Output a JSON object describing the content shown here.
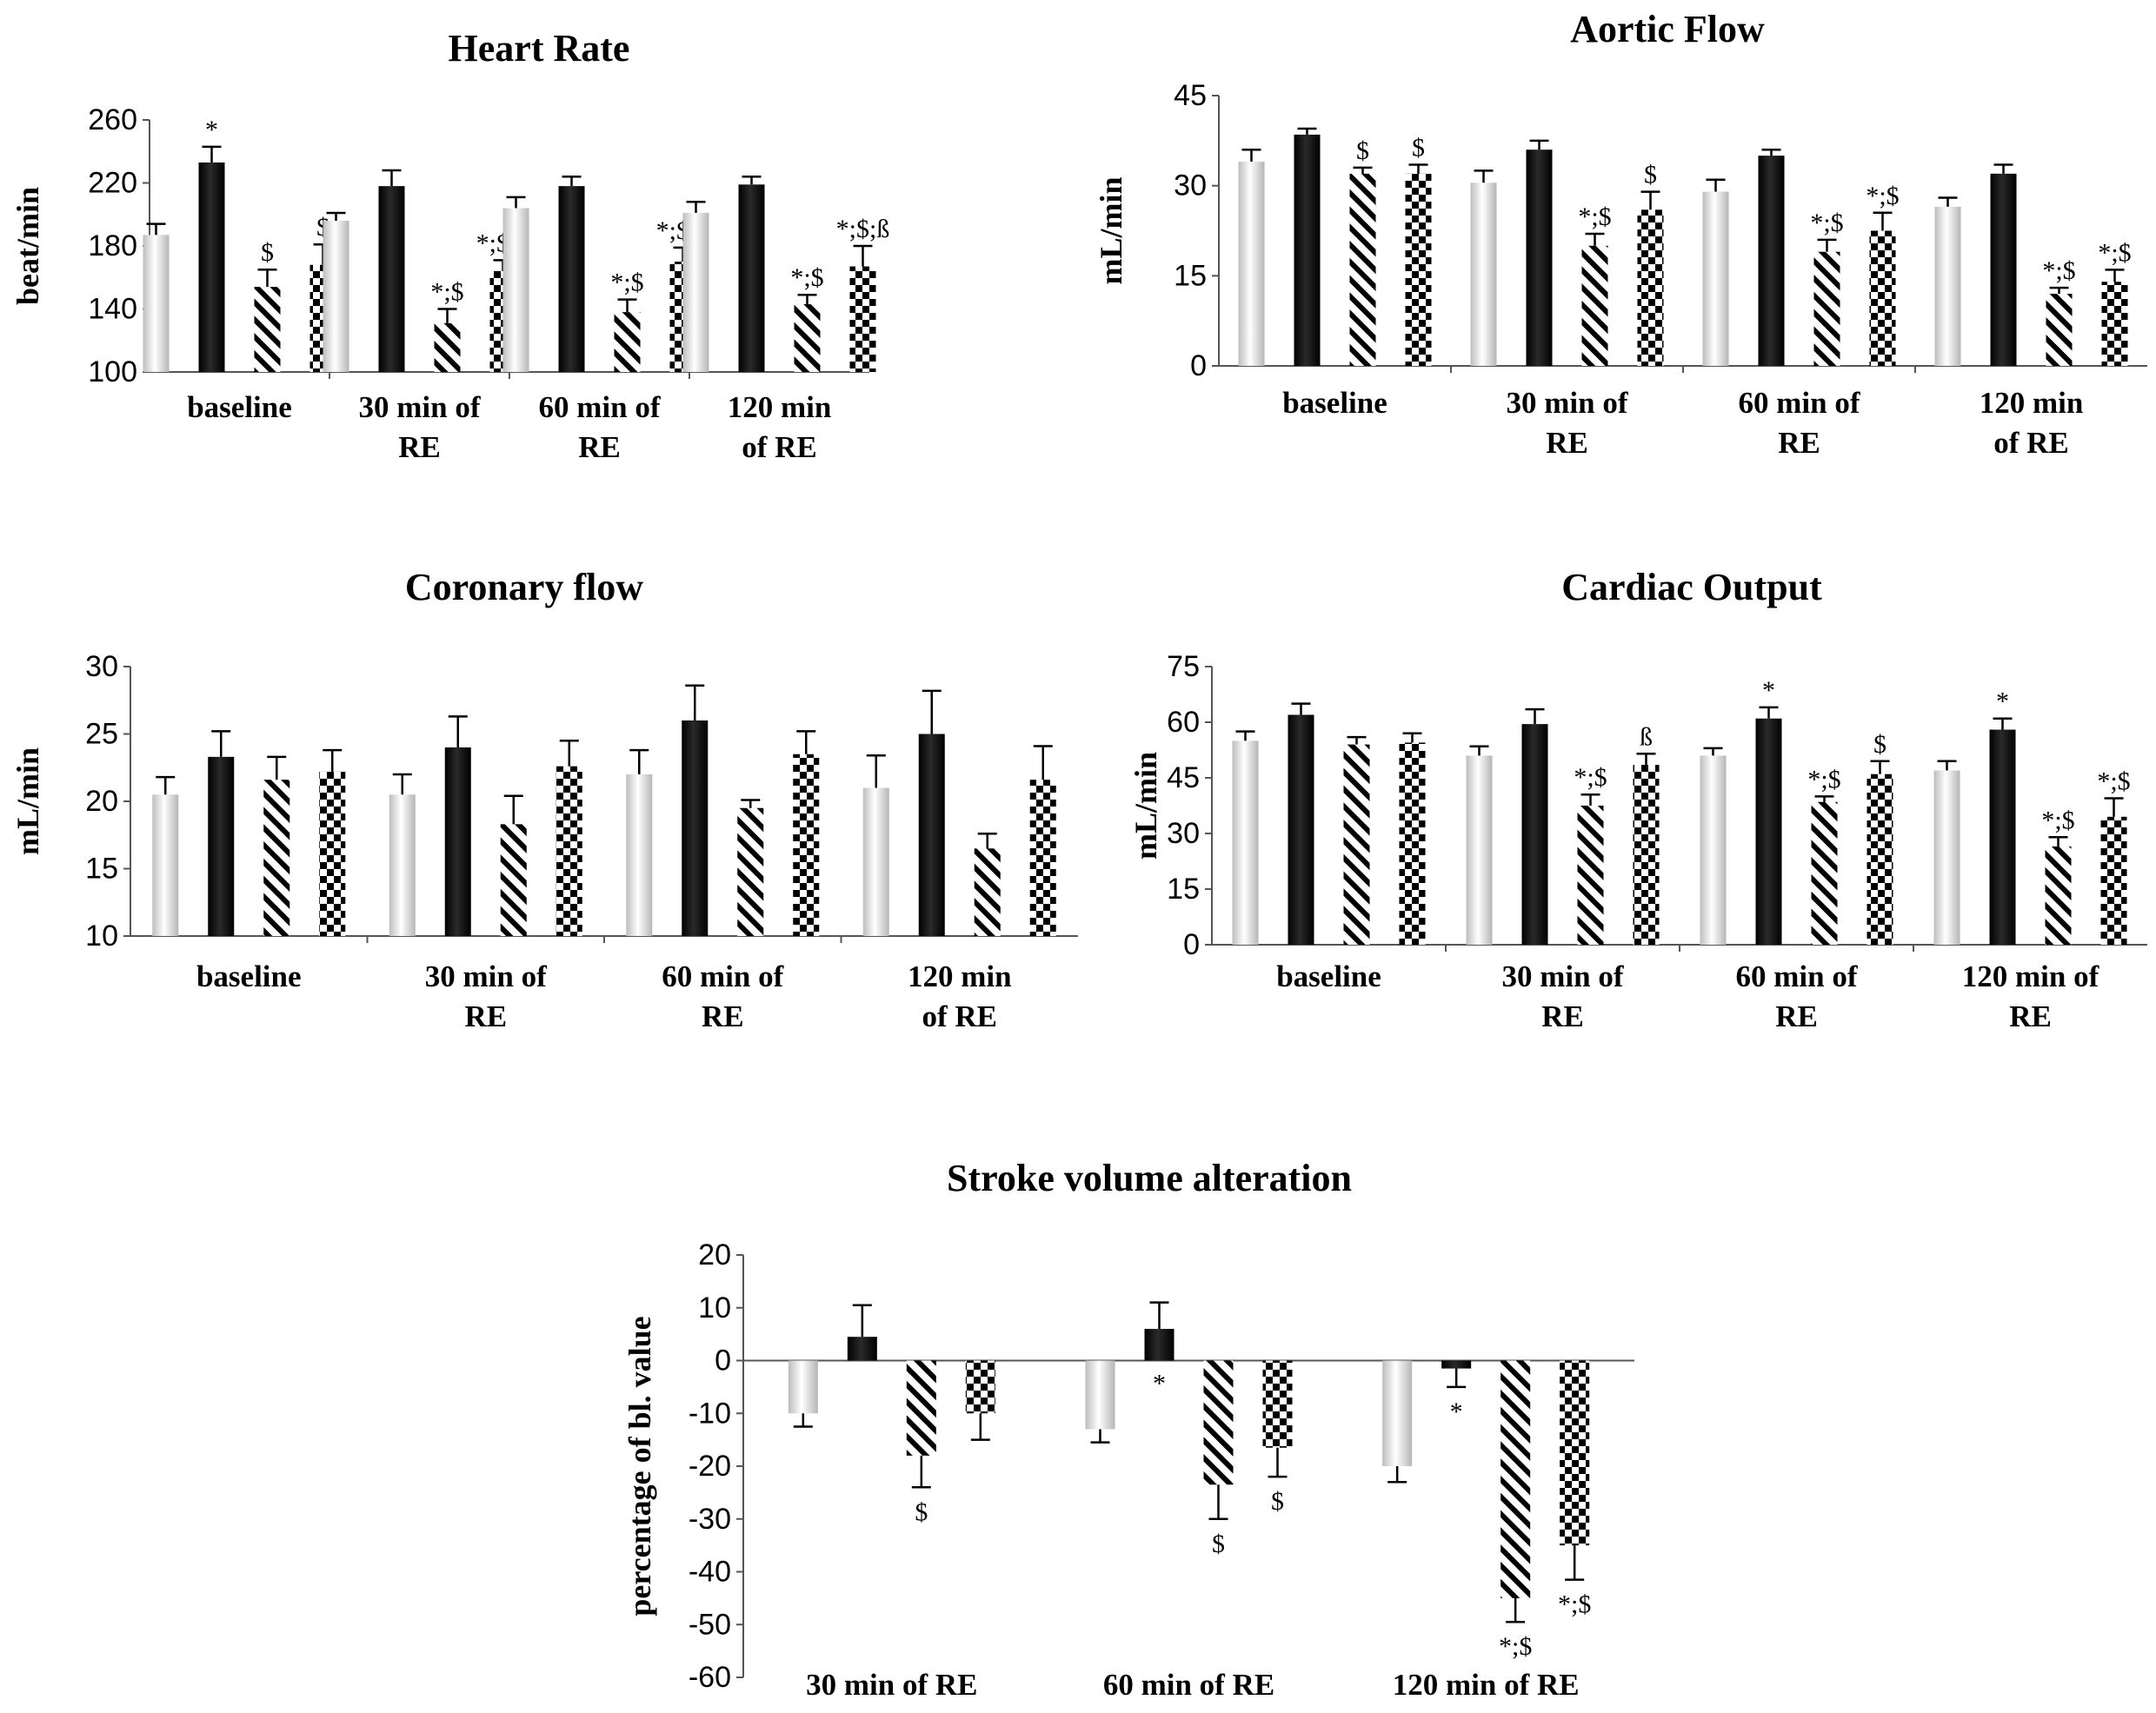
{
  "chart_data": [
    {
      "type": "bar",
      "title": "Heart Rate",
      "ylabel": "beat/min",
      "ylim": [
        100,
        260
      ],
      "yticks": [
        100,
        140,
        180,
        220,
        260
      ],
      "categories": [
        "baseline",
        "30 min of RE",
        "60 min of RE",
        "120 min of RE"
      ],
      "category_lines": [
        [
          "baseline"
        ],
        [
          "30 min of",
          "RE"
        ],
        [
          "60 min of",
          "RE"
        ],
        [
          "120 min",
          "of RE"
        ]
      ],
      "series": [
        {
          "style": "grey",
          "values": [
            187,
            196,
            204,
            201
          ],
          "errors": [
            7,
            5,
            7,
            7
          ],
          "annotations": [
            "",
            "",
            "",
            ""
          ]
        },
        {
          "style": "black",
          "values": [
            233,
            218,
            218,
            219
          ],
          "errors": [
            10,
            10,
            6,
            5
          ],
          "annotations": [
            "*",
            "",
            "",
            ""
          ]
        },
        {
          "style": "hatch",
          "values": [
            154,
            131,
            138,
            143
          ],
          "errors": [
            11,
            9,
            8,
            6
          ],
          "annotations": [
            "$",
            "*;$",
            "*;$",
            "*;$"
          ]
        },
        {
          "style": "checker",
          "values": [
            168,
            164,
            170,
            167
          ],
          "errors": [
            13,
            7,
            9,
            13
          ],
          "annotations": [
            "$",
            "*;$;ß",
            "*;$;ß",
            "*;$;ß"
          ]
        }
      ]
    },
    {
      "type": "bar",
      "title": "Aortic Flow",
      "ylabel": "mL/min",
      "ylim": [
        0,
        45
      ],
      "yticks": [
        0,
        15,
        30,
        45
      ],
      "categories": [
        "baseline",
        "30 min of RE",
        "60 min of RE",
        "120 min of RE"
      ],
      "category_lines": [
        [
          "baseline"
        ],
        [
          "30 min of",
          "RE"
        ],
        [
          "60 min of",
          "RE"
        ],
        [
          "120 min",
          "of RE"
        ]
      ],
      "series": [
        {
          "style": "grey",
          "values": [
            34,
            30.5,
            29,
            26.5
          ],
          "errors": [
            2,
            2,
            2,
            1.5
          ],
          "annotations": [
            "",
            "",
            "",
            ""
          ]
        },
        {
          "style": "black",
          "values": [
            38.5,
            36,
            35,
            32
          ],
          "errors": [
            1,
            1.5,
            1,
            1.5
          ],
          "annotations": [
            "",
            "",
            "",
            ""
          ]
        },
        {
          "style": "hatch",
          "values": [
            32,
            20,
            19,
            12
          ],
          "errors": [
            1,
            2,
            2,
            1
          ],
          "annotations": [
            "$",
            "*;$",
            "*;$",
            "*;$"
          ]
        },
        {
          "style": "checker",
          "values": [
            32,
            26,
            22.5,
            14
          ],
          "errors": [
            1.5,
            3,
            3,
            2
          ],
          "annotations": [
            "$",
            "$",
            "*;$",
            "*;$"
          ]
        }
      ]
    },
    {
      "type": "bar",
      "title": "Coronary  flow",
      "ylabel": "mL/min",
      "ylim": [
        10,
        30
      ],
      "yticks": [
        10,
        15,
        20,
        25,
        30
      ],
      "categories": [
        "baseline",
        "30 min of RE",
        "60 min of RE",
        "120 min of RE"
      ],
      "category_lines": [
        [
          "baseline"
        ],
        [
          "30 min of",
          "RE"
        ],
        [
          "60 min of",
          "RE"
        ],
        [
          "120 min",
          "of RE"
        ]
      ],
      "series": [
        {
          "style": "grey",
          "values": [
            20.5,
            20.5,
            22,
            21
          ],
          "errors": [
            1.3,
            1.5,
            1.8,
            2.4
          ],
          "annotations": [
            "",
            "",
            "",
            ""
          ]
        },
        {
          "style": "black",
          "values": [
            23.3,
            24,
            26,
            25
          ],
          "errors": [
            1.9,
            2.3,
            2.6,
            3.2
          ],
          "annotations": [
            "",
            "",
            "",
            ""
          ]
        },
        {
          "style": "hatch",
          "values": [
            21.6,
            18.3,
            19.5,
            16.5
          ],
          "errors": [
            1.7,
            2.1,
            0.6,
            1.1
          ],
          "annotations": [
            "",
            "",
            "",
            ""
          ]
        },
        {
          "style": "checker",
          "values": [
            22.2,
            22.6,
            23.5,
            21.6
          ],
          "errors": [
            1.6,
            1.9,
            1.7,
            2.5
          ],
          "annotations": [
            "",
            "",
            "",
            ""
          ]
        }
      ]
    },
    {
      "type": "bar",
      "title": "Cardiac  Output",
      "ylabel": "mL/min",
      "ylim": [
        0,
        75
      ],
      "yticks": [
        0,
        15,
        30,
        45,
        60,
        75
      ],
      "categories": [
        "baseline",
        "30 min of RE",
        "60 min of RE",
        "120 min of RE"
      ],
      "category_lines": [
        [
          "baseline"
        ],
        [
          "30 min of",
          "RE"
        ],
        [
          "60 min of",
          "RE"
        ],
        [
          "120 min of",
          "RE"
        ]
      ],
      "series": [
        {
          "style": "grey",
          "values": [
            55,
            51,
            51,
            47
          ],
          "errors": [
            2.5,
            2.5,
            2,
            2.5
          ],
          "annotations": [
            "",
            "",
            "",
            ""
          ]
        },
        {
          "style": "black",
          "values": [
            62,
            59.5,
            61,
            58
          ],
          "errors": [
            3,
            4,
            3,
            3
          ],
          "annotations": [
            "",
            "",
            "*",
            "*"
          ]
        },
        {
          "style": "hatch",
          "values": [
            54,
            37.5,
            38.5,
            26.5
          ],
          "errors": [
            2,
            3,
            1.5,
            2.5
          ],
          "annotations": [
            "",
            "*;$",
            "*;$",
            "*;$"
          ]
        },
        {
          "style": "checker",
          "values": [
            54.5,
            48.5,
            46,
            34.5
          ],
          "errors": [
            2.5,
            3,
            3.5,
            5
          ],
          "annotations": [
            "",
            "ß",
            "$",
            "*;$"
          ]
        }
      ]
    },
    {
      "type": "bar",
      "title": "Stroke volume alteration",
      "ylabel": "percentage of bl. value",
      "ylim": [
        -60,
        20
      ],
      "yticks": [
        -60,
        -50,
        -40,
        -30,
        -20,
        -10,
        0,
        10,
        20
      ],
      "categories": [
        "30 min of RE",
        "60 min of RE",
        "120 min of RE"
      ],
      "category_lines": [
        [
          "30 min of RE"
        ],
        [
          "60 min of RE"
        ],
        [
          "120 min of RE"
        ]
      ],
      "series": [
        {
          "style": "grey",
          "values": [
            -10,
            -13,
            -20
          ],
          "errors": [
            2.5,
            2.5,
            3
          ],
          "annotations": [
            "",
            "",
            ""
          ]
        },
        {
          "style": "black",
          "values": [
            4.5,
            6,
            -1.5
          ],
          "errors": [
            6,
            5,
            3.5
          ],
          "annotations": [
            "",
            "*",
            "*"
          ]
        },
        {
          "style": "hatch",
          "values": [
            -18,
            -23.5,
            -45
          ],
          "errors": [
            6,
            6.5,
            4.5
          ],
          "annotations": [
            "$",
            "$",
            "*;$"
          ]
        },
        {
          "style": "checker",
          "values": [
            -10,
            -16.5,
            -35
          ],
          "errors": [
            5,
            5.5,
            6.5
          ],
          "annotations": [
            "",
            "$",
            "*;$"
          ]
        }
      ]
    }
  ]
}
